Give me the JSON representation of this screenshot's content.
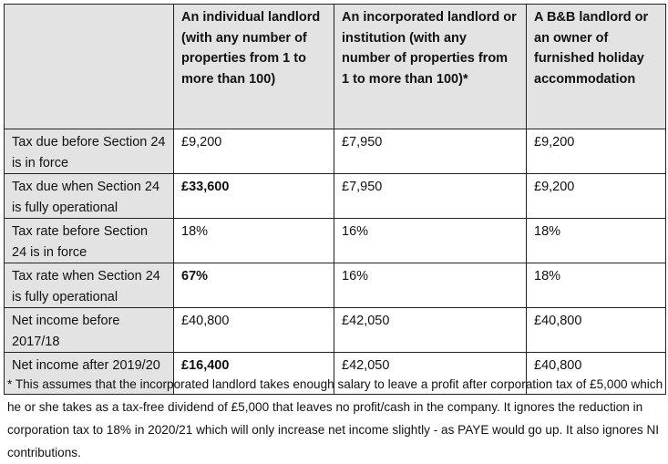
{
  "table": {
    "headers": [
      "",
      "An individual landlord  (with any number of properties from 1 to more than 100)",
      "An incorporated landlord or institution (with any number of properties from 1 to more than 100)*",
      "A B&B landlord or an owner of furnished holiday accommodation"
    ],
    "rows": [
      {
        "label": "Tax due before Section 24 is in force",
        "cells": [
          "£9,200",
          "£7,950",
          "£9,200"
        ],
        "bold_first": false
      },
      {
        "label": "Tax due when Section 24 is fully operational",
        "cells": [
          "£33,600",
          "£7,950",
          "£9,200"
        ],
        "bold_first": true
      },
      {
        "label": "Tax rate before Section 24 is in force",
        "cells": [
          "18%",
          "16%",
          "18%"
        ],
        "bold_first": false
      },
      {
        "label": "Tax rate when Section 24 is fully operational",
        "cells": [
          "67%",
          "16%",
          "18%"
        ],
        "bold_first": true
      },
      {
        "label": "Net income before 2017/18",
        "cells": [
          "£40,800",
          "£42,050",
          "£40,800"
        ],
        "bold_first": false
      },
      {
        "label": "Net income after 2019/20",
        "cells": [
          "£16,400",
          "£42,050",
          "£40,800"
        ],
        "bold_first": true
      }
    ]
  },
  "footnote": "* This assumes that the incorporated landlord takes enough salary to leave a profit after corporation tax of £5,000 which he or she takes as a tax-free dividend of £5,000 that leaves no profit/cash in the company. It ignores the reduction in corporation tax to 18% in 2020/21 which will only increase net income slightly - as PAYE would go up. It also ignores NI contributions."
}
